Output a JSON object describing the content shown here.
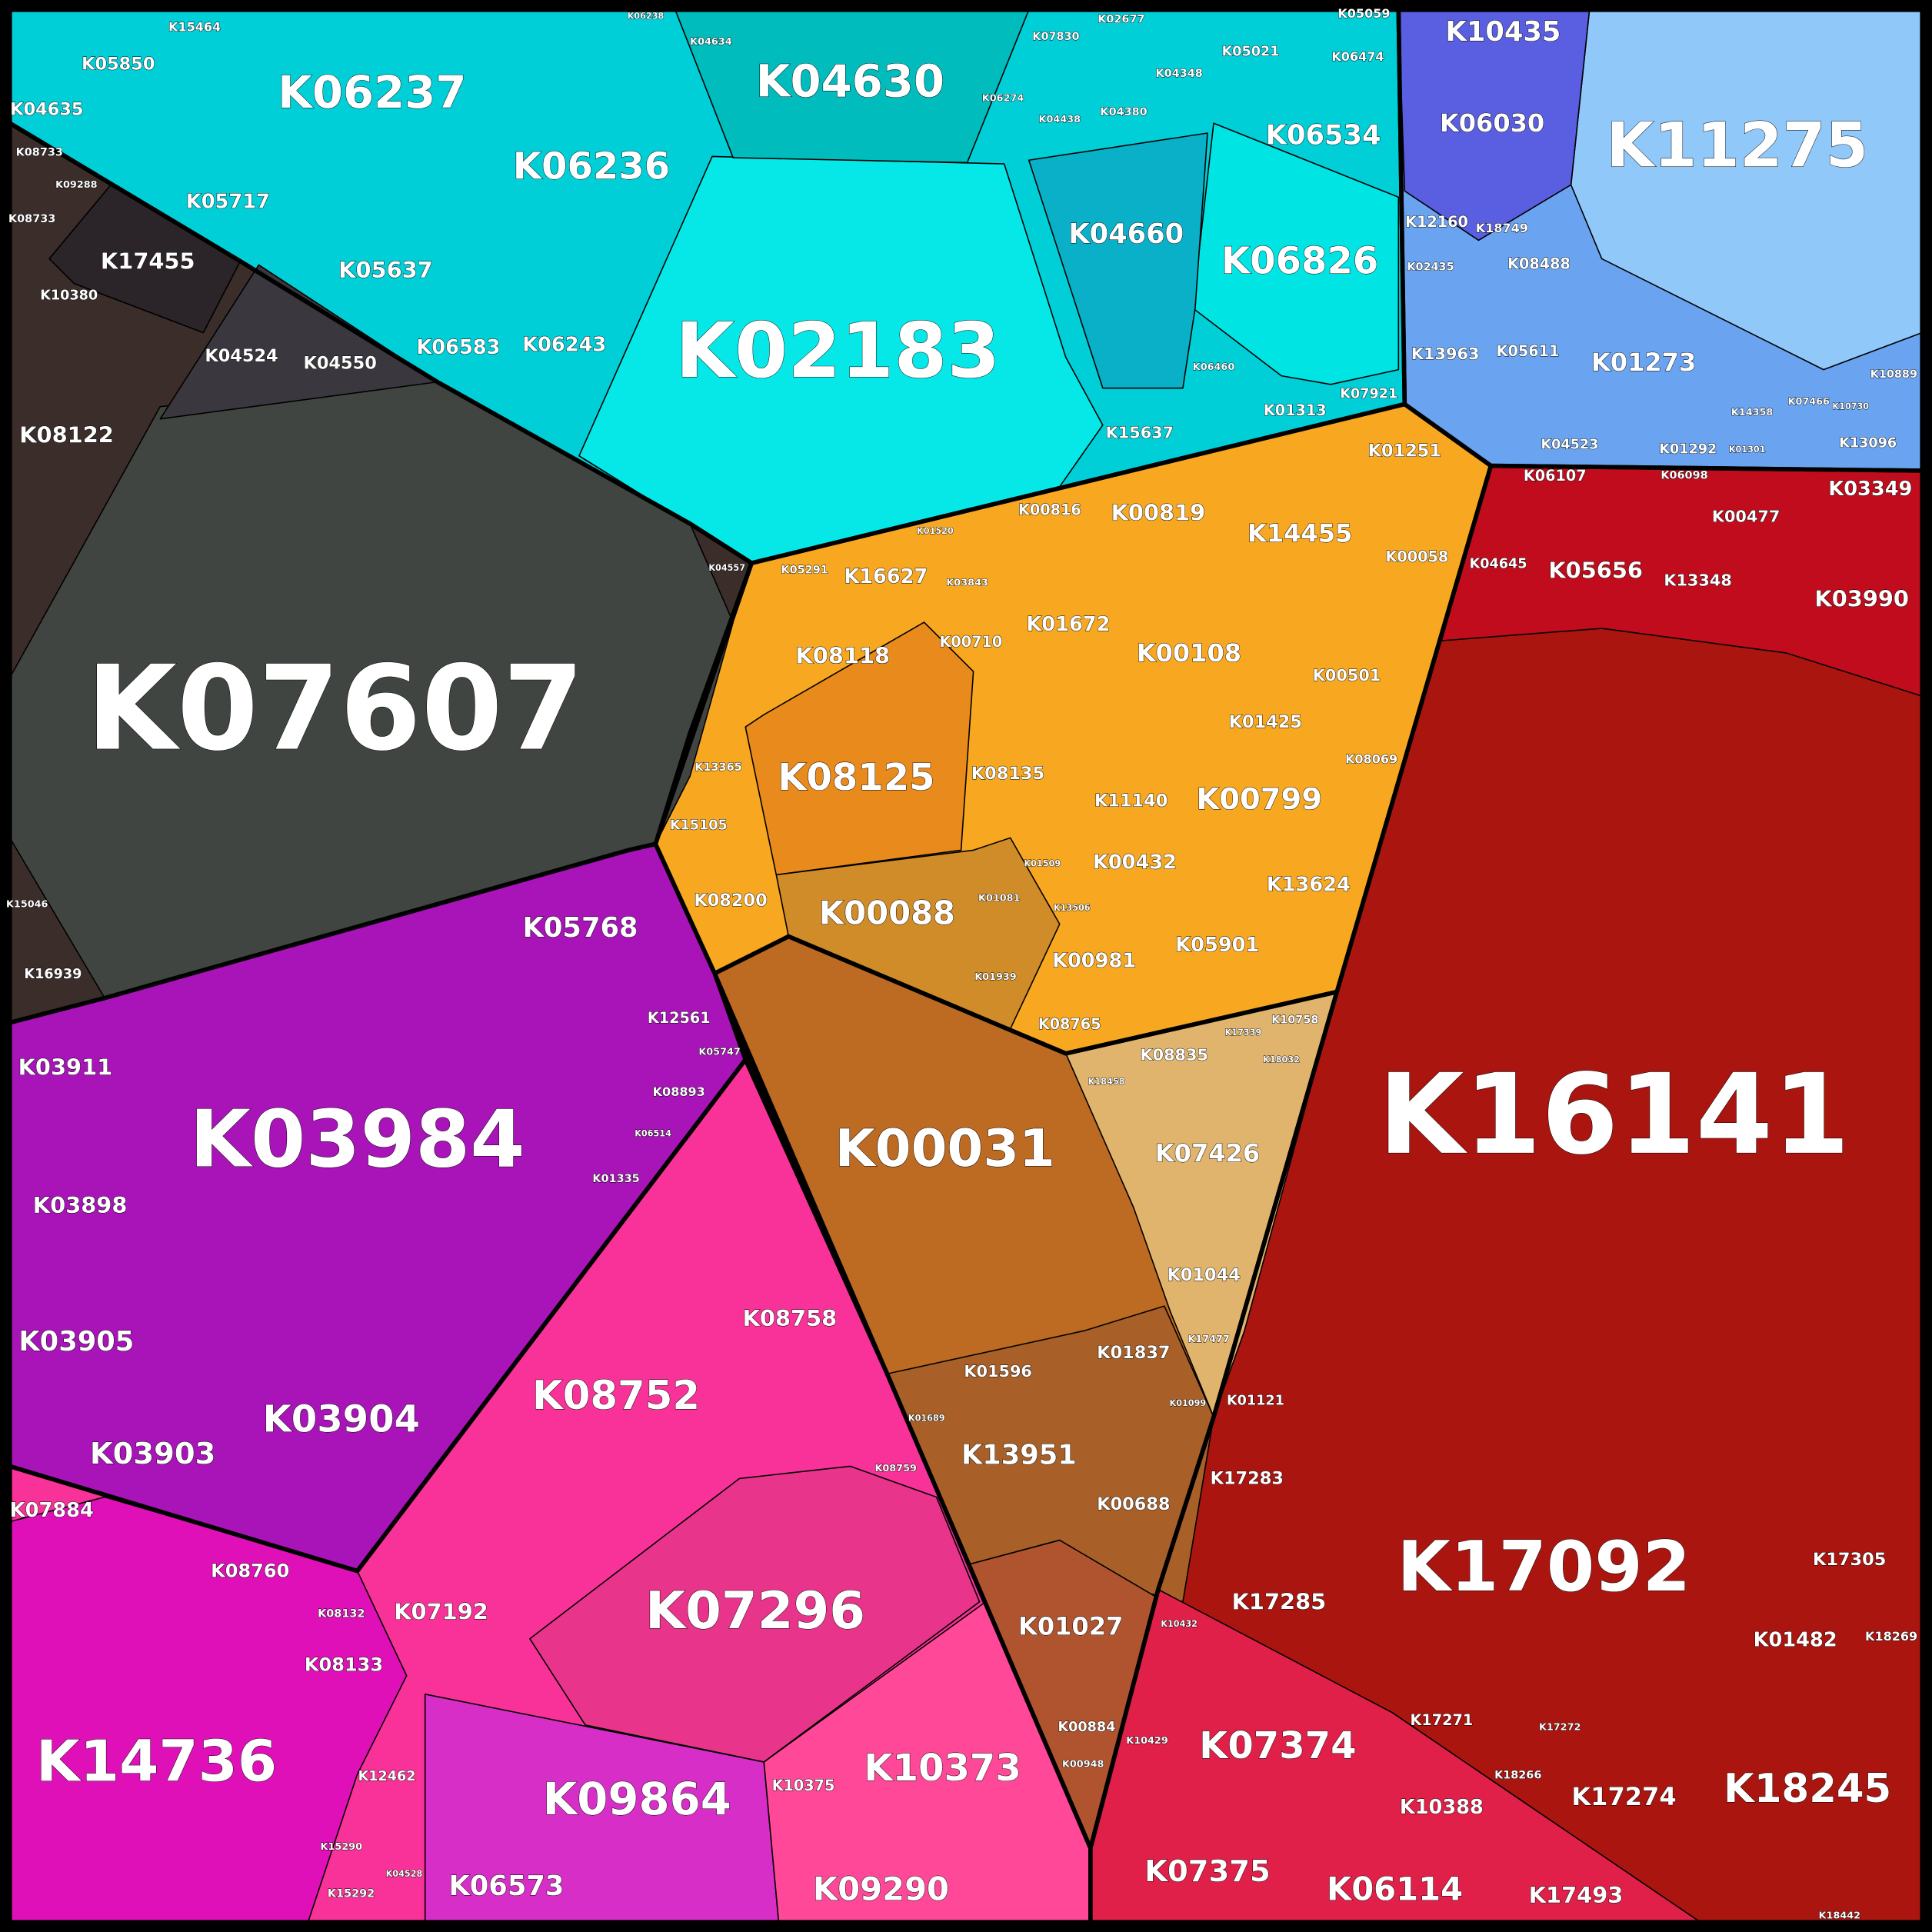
{
  "group_colors": {
    "cyan": "#00cfd8",
    "gray": "#3a2d2a",
    "purple": "#a814b8",
    "pink": "#f83298",
    "orange": "#f8a820",
    "brown": "#bd6a22",
    "red": "#ab1510",
    "blue": "#6aa4f0"
  },
  "cells": [
    {
      "label": "K07607",
      "color": "#414541"
    },
    {
      "label": "K02183",
      "color": "#06e8e8"
    },
    {
      "label": "K04630",
      "color": "#00bcbc"
    },
    {
      "label": "K06826",
      "color": "#00e4e4"
    },
    {
      "label": "K04660",
      "color": "#0ab0c8"
    },
    {
      "label": "K11275",
      "color": "#90c8fa"
    },
    {
      "label": "K06030",
      "color": "#5a5ee0"
    },
    {
      "label": "K08125",
      "color": "#e88a1c"
    },
    {
      "label": "K00088",
      "color": "#d08c28"
    },
    {
      "label": "K13951",
      "color": "#a86028"
    },
    {
      "label": "K01027",
      "color": "#b05430"
    },
    {
      "label": "K07426",
      "color": "#e0b46c"
    },
    {
      "label": "K07374",
      "color": "#e02048"
    },
    {
      "label": "K05656",
      "color": "#c00c1c"
    },
    {
      "label": "K14736",
      "color": "#e010b8"
    },
    {
      "label": "K09864",
      "color": "#d82ec8"
    },
    {
      "label": "K10373",
      "color": "#ff4898"
    },
    {
      "label": "K07296",
      "color": "#e8348a"
    },
    {
      "label": "K17455",
      "color": "#2b2428"
    },
    {
      "label": "K04524",
      "color": "#3a383e"
    }
  ],
  "labels": [
    "K07607",
    "K16141",
    "K02183",
    "K03984",
    "K17092",
    "K11275",
    "K07296",
    "K00031",
    "K06237",
    "K04630",
    "K06236",
    "K06826",
    "K14736",
    "K09864",
    "K08752",
    "K03904",
    "K10373",
    "K18245",
    "K07374",
    "K08125",
    "K00088",
    "K00799",
    "K13951",
    "K04660",
    "K06534",
    "K06030",
    "K10435",
    "K01273",
    "K00108",
    "K14455",
    "K00819",
    "K03903",
    "K03905",
    "K03898",
    "K03911",
    "K05768",
    "K08758",
    "K07192",
    "K06573",
    "K09290",
    "K08122",
    "K17455",
    "K05850",
    "K04635",
    "K05717",
    "K05637",
    "K06583",
    "K06243",
    "K04524",
    "K04550",
    "K10380",
    "K08733",
    "K09288",
    "K15464",
    "K16627",
    "K08118",
    "K00710",
    "K08135",
    "K01672",
    "K00501",
    "K01425",
    "K01251",
    "K00058",
    "K00816",
    "K08069",
    "K11140",
    "K00432",
    "K13624",
    "K05901",
    "K00981",
    "K08765",
    "K15105",
    "K13365",
    "K08200",
    "K08835",
    "K07426",
    "K01044",
    "K10758",
    "K01837",
    "K01596",
    "K00688",
    "K01027",
    "K00884",
    "K01121",
    "K17283",
    "K17285",
    "K07375",
    "K06114",
    "K17493",
    "K10388",
    "K17274",
    "K01482",
    "K17305",
    "K17271",
    "K06107",
    "K03349",
    "K00477",
    "K04645",
    "K05656",
    "K13348",
    "K03990",
    "K07884",
    "K08760",
    "K08133",
    "K12462",
    "K10375",
    "K12561",
    "K01335",
    "K08893",
    "K05747",
    "K06514",
    "K15046",
    "K16939",
    "K12160",
    "K18749",
    "K02435",
    "K08488",
    "K13963",
    "K05611",
    "K04523",
    "K01292",
    "K13096",
    "K07921",
    "K01313",
    "K15637",
    "K05021",
    "K06474",
    "K05059",
    "K07830",
    "K02677",
    "K04348",
    "K04380",
    "K04438",
    "K06274",
    "K04634",
    "K06238",
    "K15290",
    "K15292",
    "K04528",
    "K18266",
    "K17272",
    "K18269",
    "K01689",
    "K08759",
    "K08132",
    "K00948",
    "K10429",
    "K10432",
    "K01081",
    "K01939",
    "K01509",
    "K13506",
    "K05291",
    "K03843",
    "K01520",
    "K01099",
    "K17477",
    "K18458",
    "K18032",
    "K17339",
    "K04557",
    "K06460",
    "K18442",
    "K07466",
    "K10889",
    "K14358",
    "K01301",
    "K10730",
    "K06098",
    "K08733"
  ]
}
